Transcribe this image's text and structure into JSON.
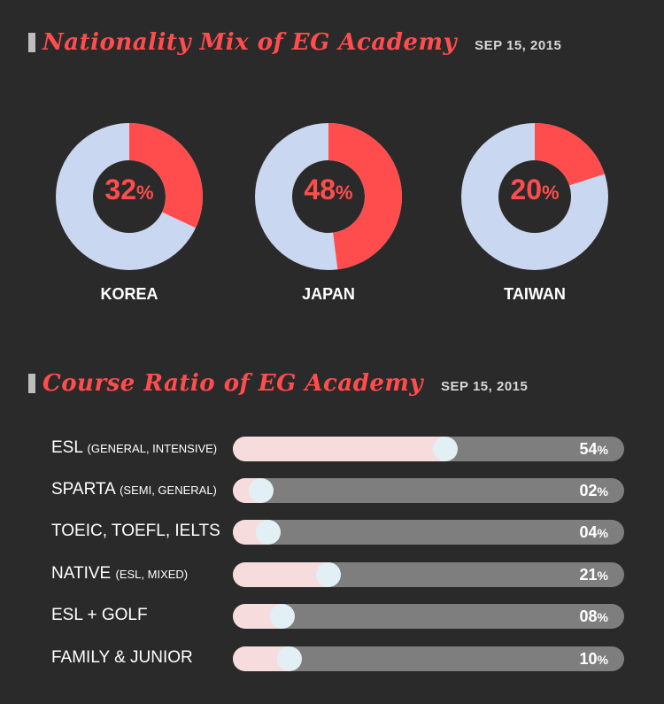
{
  "nationality": {
    "title": "Nationality Mix of EG Academy",
    "date": "SEP 15, 2015"
  },
  "course": {
    "title": "Course Ratio of EG Academy",
    "date": "SEP 15, 2015"
  },
  "colors": {
    "accent": "#ff4d4d",
    "donut_rest": "#c9d7f0",
    "bar_fill": "#f6dcdc",
    "bar_track": "#7e7e7e",
    "knob": "#e2f0f5",
    "background": "#2b2a2a"
  },
  "chart_data": [
    {
      "type": "pie",
      "title": "Nationality Mix of EG Academy",
      "subtitle": "SEP 15, 2015",
      "slices": [
        {
          "label": "KOREA",
          "value": 32,
          "display": "32"
        },
        {
          "label": "JAPAN",
          "value": 48,
          "display": "48"
        },
        {
          "label": "TAIWAN",
          "value": 20,
          "display": "20"
        }
      ],
      "unit": "%"
    },
    {
      "type": "bar",
      "title": "Course Ratio of EG Academy",
      "subtitle": "SEP 15, 2015",
      "categories": [
        {
          "label": "ESL",
          "sub": "(GENERAL, INTENSIVE)"
        },
        {
          "label": "SPARTA",
          "sub": "(SEMI, GENERAL)"
        },
        {
          "label": "TOEIC, TOEFL, IELTS",
          "sub": ""
        },
        {
          "label": "NATIVE",
          "sub": "(ESL, MIXED)"
        },
        {
          "label": "ESL + GOLF",
          "sub": ""
        },
        {
          "label": "FAMILY & JUNIOR",
          "sub": ""
        }
      ],
      "values": [
        54,
        2,
        4,
        21,
        8,
        10
      ],
      "value_labels": [
        "54",
        "02",
        "04",
        "21",
        "08",
        "10"
      ],
      "unit": "%",
      "ylim": [
        0,
        100
      ]
    }
  ]
}
